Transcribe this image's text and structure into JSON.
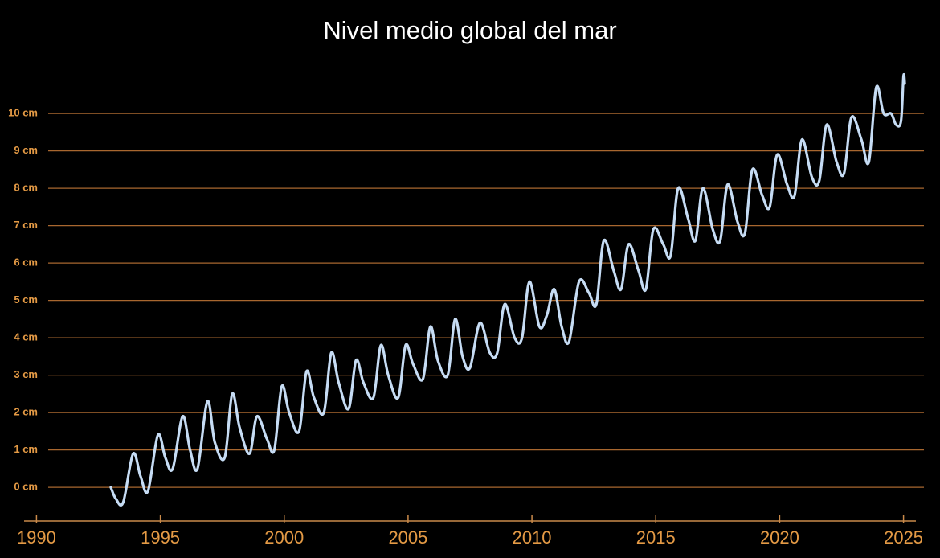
{
  "chart_data": {
    "type": "line",
    "title": "Nivel medio global del mar",
    "x": [
      1993.0,
      1993.2,
      1993.5,
      1993.9,
      1994.2,
      1994.5,
      1994.9,
      1995.2,
      1995.5,
      1995.9,
      1996.2,
      1996.5,
      1996.9,
      1997.2,
      1997.6,
      1997.9,
      1998.2,
      1998.6,
      1998.9,
      1999.3,
      1999.6,
      1999.9,
      2000.2,
      2000.6,
      2000.9,
      2001.2,
      2001.6,
      2001.9,
      2002.2,
      2002.6,
      2002.9,
      2003.2,
      2003.6,
      2003.9,
      2004.2,
      2004.6,
      2004.9,
      2005.2,
      2005.6,
      2005.9,
      2006.2,
      2006.6,
      2006.9,
      2007.2,
      2007.5,
      2007.9,
      2008.3,
      2008.6,
      2008.9,
      2009.3,
      2009.6,
      2009.9,
      2010.3,
      2010.6,
      2010.9,
      2011.2,
      2011.5,
      2011.9,
      2012.3,
      2012.6,
      2012.9,
      2013.3,
      2013.6,
      2013.9,
      2014.3,
      2014.6,
      2014.9,
      2015.3,
      2015.6,
      2015.9,
      2016.3,
      2016.6,
      2016.9,
      2017.3,
      2017.6,
      2017.9,
      2018.3,
      2018.6,
      2018.9,
      2019.3,
      2019.6,
      2019.9,
      2020.3,
      2020.6,
      2020.9,
      2021.3,
      2021.6,
      2021.9,
      2022.3,
      2022.6,
      2022.9,
      2023.3,
      2023.6,
      2023.9,
      2024.2,
      2024.5,
      2024.7,
      2024.9,
      2025.0,
      2025.05
    ],
    "series": [
      {
        "name": "Nivel medio global del mar",
        "color": "#c6dcf4",
        "values": [
          0.0,
          -0.3,
          -0.4,
          0.9,
          0.3,
          -0.1,
          1.4,
          0.8,
          0.5,
          1.9,
          1.0,
          0.5,
          2.3,
          1.2,
          0.8,
          2.5,
          1.6,
          0.9,
          1.9,
          1.3,
          1.0,
          2.7,
          2.0,
          1.5,
          3.1,
          2.4,
          2.0,
          3.6,
          2.8,
          2.1,
          3.4,
          2.8,
          2.4,
          3.8,
          3.0,
          2.4,
          3.8,
          3.3,
          2.9,
          4.3,
          3.4,
          3.0,
          4.5,
          3.5,
          3.2,
          4.4,
          3.6,
          3.6,
          4.9,
          4.0,
          4.0,
          5.5,
          4.3,
          4.6,
          5.3,
          4.3,
          3.9,
          5.5,
          5.2,
          4.9,
          6.6,
          5.8,
          5.3,
          6.5,
          5.8,
          5.3,
          6.9,
          6.5,
          6.2,
          8.0,
          7.2,
          6.6,
          8.0,
          6.9,
          6.6,
          8.1,
          7.1,
          6.8,
          8.5,
          7.8,
          7.5,
          8.9,
          8.1,
          7.8,
          9.3,
          8.3,
          8.2,
          9.7,
          8.7,
          8.4,
          9.9,
          9.3,
          8.7,
          10.7,
          10.0,
          10.0,
          9.7,
          9.8,
          11.0,
          10.8
        ]
      }
    ],
    "xlim": [
      1989.5,
      2025.5
    ],
    "xticks": [
      1990,
      1995,
      2000,
      2005,
      2010,
      2015,
      2020,
      2025
    ],
    "ylim": [
      -0.9,
      11.1
    ],
    "yticks": [
      {
        "value": 0,
        "label": "0 cm"
      },
      {
        "value": 1,
        "label": "1 cm"
      },
      {
        "value": 2,
        "label": "2 cm"
      },
      {
        "value": 3,
        "label": "3 cm"
      },
      {
        "value": 4,
        "label": "4 cm"
      },
      {
        "value": 5,
        "label": "5 cm"
      },
      {
        "value": 6,
        "label": "6 cm"
      },
      {
        "value": 7,
        "label": "7 cm"
      },
      {
        "value": 8,
        "label": "8 cm"
      },
      {
        "value": 9,
        "label": "9 cm"
      },
      {
        "value": 10,
        "label": "10 cm"
      }
    ],
    "grid": true
  }
}
